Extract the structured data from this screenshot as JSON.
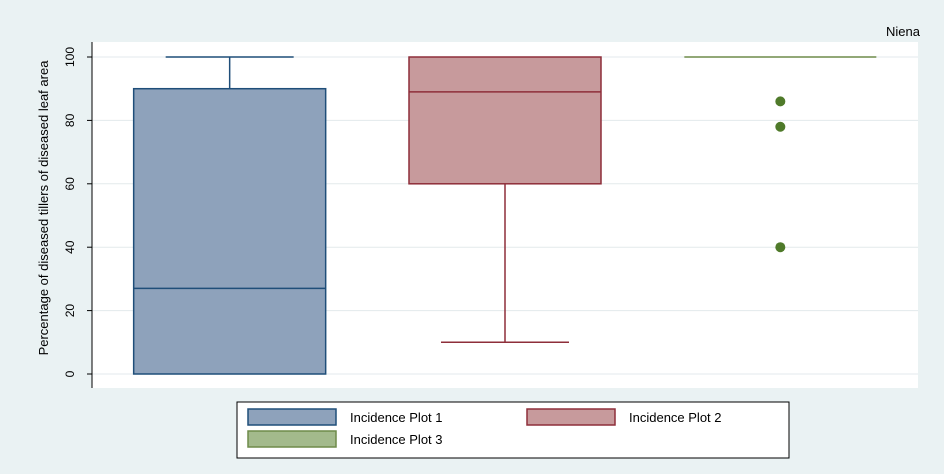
{
  "chart_data": {
    "type": "box",
    "panel_title": "Niena",
    "ylabel": "Percentage of diseased tillers of diseased leaf area",
    "xlabel": "",
    "ylim": [
      0,
      100
    ],
    "yticks": [
      0,
      20,
      40,
      60,
      80,
      100
    ],
    "grid": true,
    "legend_position": "bottom",
    "series": [
      {
        "name": "Incidence Plot 1",
        "color": "#8ea2bb",
        "edge_color": "#1f4e79",
        "min": 0,
        "q1": 0,
        "median": 27,
        "q3": 90,
        "max": 100,
        "outliers": []
      },
      {
        "name": "Incidence Plot 2",
        "color": "#c79a9c",
        "edge_color": "#8e2e3a",
        "min": 10,
        "q1": 60,
        "median": 89,
        "q3": 100,
        "max": 100,
        "outliers": []
      },
      {
        "name": "Incidence Plot 3",
        "color": "#a3ba8c",
        "edge_color": "#6e8b4a",
        "point_color": "#4f7a2a",
        "min": 100,
        "q1": 100,
        "median": 100,
        "q3": 100,
        "max": 100,
        "outliers": [
          86,
          78,
          40
        ]
      }
    ]
  }
}
